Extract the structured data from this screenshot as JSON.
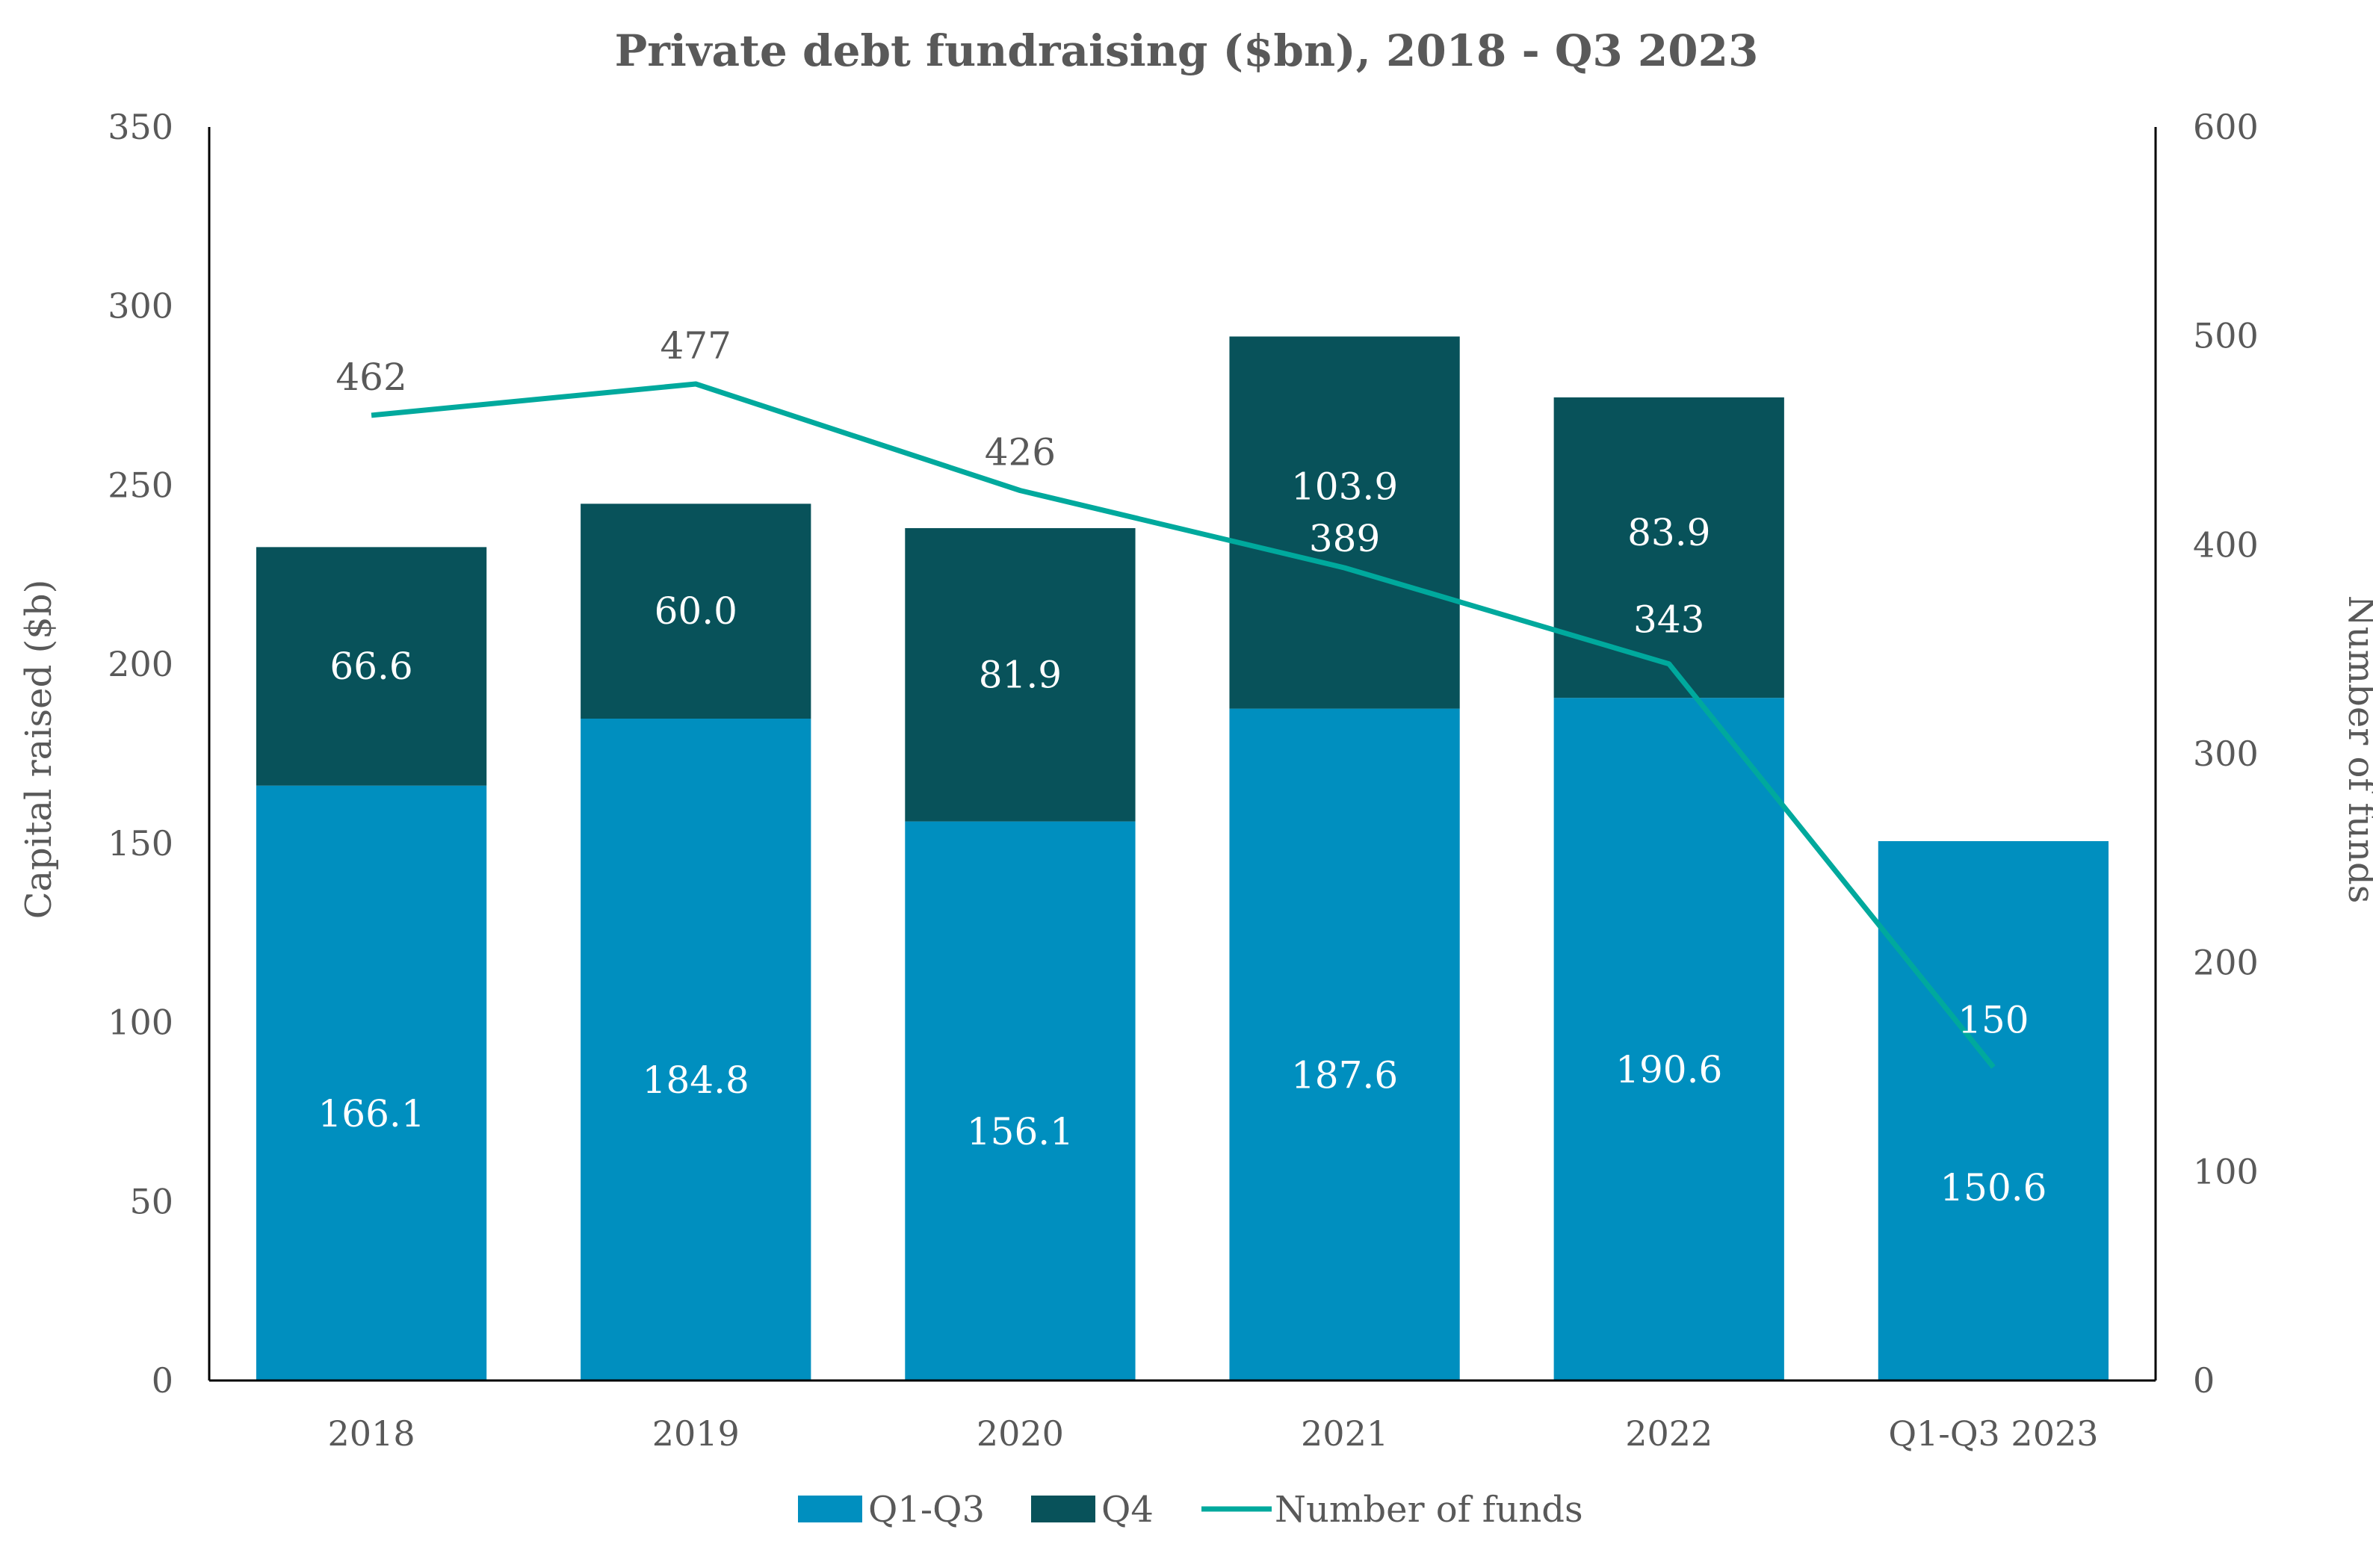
{
  "chart_data": {
    "type": "bar",
    "title": "Private debt fundraising ($bn), 2018 - Q3 2023",
    "categories": [
      "2018",
      "2019",
      "2020",
      "2021",
      "2022",
      "Q1-Q3 2023"
    ],
    "series": [
      {
        "name": "Q1-Q3",
        "kind": "bar",
        "axis": "left",
        "values": [
          166.1,
          184.8,
          156.1,
          187.6,
          190.6,
          150.6
        ],
        "labels": [
          "166.1",
          "184.8",
          "156.1",
          "187.6",
          "190.6",
          "150.6"
        ],
        "color": "#008FBF"
      },
      {
        "name": "Q4",
        "kind": "bar",
        "axis": "left",
        "values": [
          66.6,
          60.0,
          81.9,
          103.9,
          83.9,
          null
        ],
        "labels": [
          "66.6",
          "60.0",
          "81.9",
          "103.9",
          "83.9",
          ""
        ],
        "color": "#08525A"
      },
      {
        "name": "Number of funds",
        "kind": "line",
        "axis": "right",
        "values": [
          462,
          477,
          426,
          389,
          343,
          150
        ],
        "labels": [
          "462",
          "477",
          "426",
          "389",
          "343",
          "150"
        ],
        "color": "#00A99D"
      }
    ],
    "stacked": true,
    "ylabel": "Capital raised ($b)",
    "y2label": "Number of funds",
    "ylim": [
      0,
      350
    ],
    "y2lim": [
      0,
      600
    ],
    "yticks": [
      "0",
      "50",
      "100",
      "150",
      "200",
      "250",
      "300",
      "350"
    ],
    "y2ticks": [
      "0",
      "100",
      "200",
      "300",
      "400",
      "500",
      "600"
    ],
    "grid": false,
    "legend_position": "bottom"
  }
}
